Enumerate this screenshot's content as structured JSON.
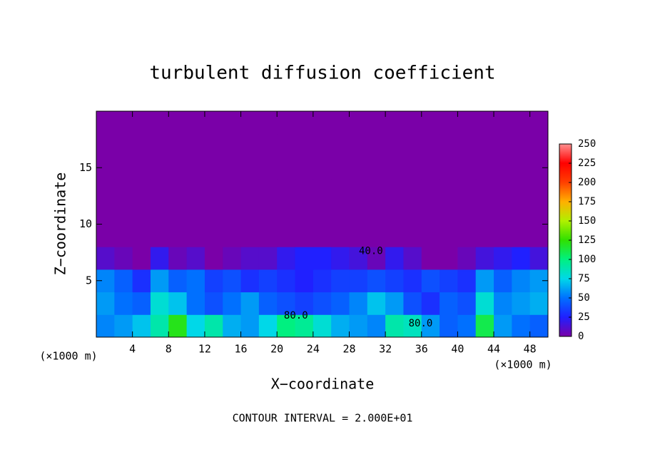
{
  "chart_data": {
    "type": "heatmap",
    "title": "turbulent diffusion coefficient",
    "x_label": "X−coordinate",
    "y_label": "Z−coordinate",
    "x_unit": "(×1000 m)",
    "footer": "CONTOUR INTERVAL = 2.000E+01",
    "xlim": [
      0,
      50
    ],
    "ylim": [
      0,
      20
    ],
    "xticks": [
      4,
      8,
      12,
      16,
      20,
      24,
      28,
      32,
      36,
      40,
      44,
      48
    ],
    "yticks": [
      5,
      10,
      15
    ],
    "x": [
      1,
      3,
      5,
      7,
      9,
      11,
      13,
      15,
      17,
      19,
      21,
      23,
      25,
      27,
      29,
      31,
      33,
      35,
      37,
      39,
      41,
      43,
      45,
      47,
      49
    ],
    "y": [
      1,
      3,
      5,
      7,
      9,
      11,
      13,
      15,
      17,
      19
    ],
    "z": [
      [
        55,
        60,
        70,
        90,
        120,
        75,
        90,
        65,
        60,
        75,
        100,
        95,
        80,
        65,
        60,
        55,
        90,
        85,
        60,
        45,
        50,
        110,
        60,
        50,
        45
      ],
      [
        60,
        50,
        45,
        80,
        70,
        50,
        40,
        50,
        60,
        45,
        40,
        35,
        40,
        45,
        55,
        70,
        60,
        40,
        30,
        45,
        40,
        80,
        55,
        60,
        65
      ],
      [
        55,
        45,
        30,
        60,
        45,
        50,
        35,
        40,
        30,
        35,
        30,
        25,
        30,
        35,
        35,
        40,
        35,
        30,
        40,
        35,
        30,
        60,
        45,
        55,
        60
      ],
      [
        10,
        5,
        0,
        20,
        5,
        10,
        0,
        5,
        10,
        10,
        20,
        25,
        25,
        20,
        15,
        5,
        20,
        10,
        0,
        0,
        5,
        15,
        20,
        25,
        15
      ],
      [
        0,
        0,
        0,
        0,
        0,
        0,
        0,
        0,
        0,
        0,
        0,
        0,
        0,
        0,
        0,
        0,
        0,
        0,
        0,
        0,
        0,
        0,
        0,
        0,
        0
      ],
      [
        0,
        0,
        0,
        0,
        0,
        0,
        0,
        0,
        0,
        0,
        0,
        0,
        0,
        0,
        0,
        0,
        0,
        0,
        0,
        0,
        0,
        0,
        0,
        0,
        0
      ],
      [
        0,
        0,
        0,
        0,
        0,
        0,
        0,
        0,
        0,
        0,
        0,
        0,
        0,
        0,
        0,
        0,
        0,
        0,
        0,
        0,
        0,
        0,
        0,
        0,
        0
      ],
      [
        0,
        0,
        0,
        0,
        0,
        0,
        0,
        0,
        0,
        0,
        0,
        0,
        0,
        0,
        0,
        0,
        0,
        0,
        0,
        0,
        0,
        0,
        0,
        0,
        0
      ],
      [
        0,
        0,
        0,
        0,
        0,
        0,
        0,
        0,
        0,
        0,
        0,
        0,
        0,
        0,
        0,
        0,
        0,
        0,
        0,
        0,
        0,
        0,
        0,
        0,
        0
      ],
      [
        0,
        0,
        0,
        0,
        0,
        0,
        0,
        0,
        0,
        0,
        0,
        0,
        0,
        0,
        0,
        0,
        0,
        0,
        0,
        0,
        0,
        0,
        0,
        0,
        0
      ]
    ],
    "clim": [
      0,
      250
    ],
    "cticks": [
      0,
      25,
      50,
      75,
      100,
      125,
      150,
      175,
      200,
      225,
      250
    ],
    "colorscale": [
      "#7a00a8",
      "#2020ff",
      "#0070ff",
      "#00d8e8",
      "#00f080",
      "#30e000",
      "#b0f000",
      "#ffb000",
      "#ff4000",
      "#ff0000",
      "#ff9090"
    ],
    "annotations": [
      {
        "text": "40.0",
        "x": 30.4,
        "y": 7.6
      },
      {
        "text": "80.0",
        "x": 22.1,
        "y": 1.9
      },
      {
        "text": "80.0",
        "x": 35.9,
        "y": 1.2
      }
    ]
  }
}
